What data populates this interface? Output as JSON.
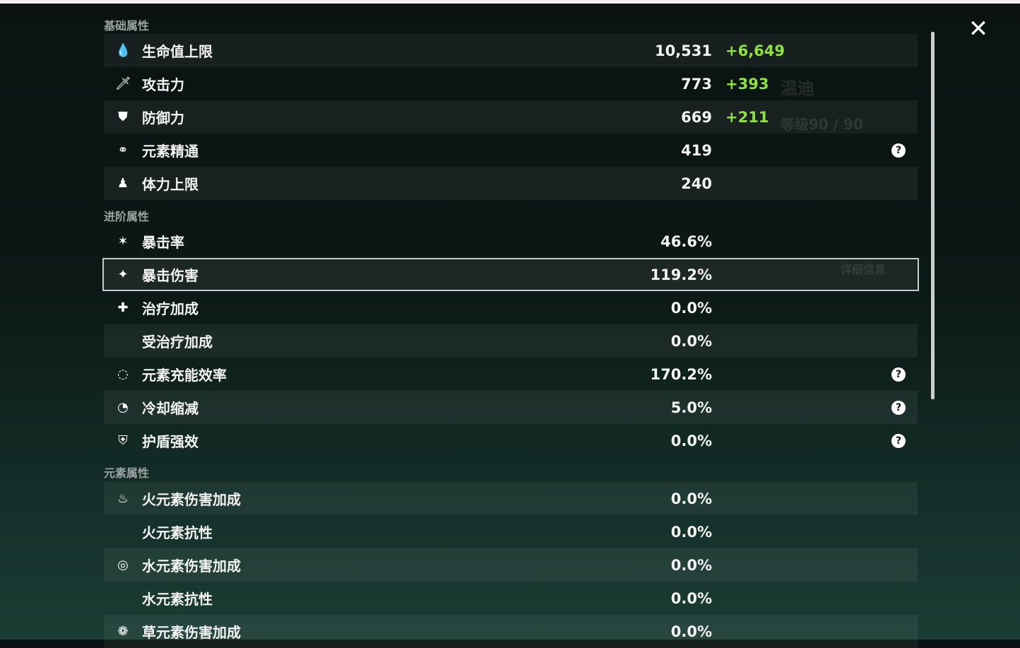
{
  "sections": {
    "basic": "基础属性",
    "advanced": "进阶属性",
    "element": "元素属性"
  },
  "basic": [
    {
      "label": "生命值上限",
      "value": "10,531",
      "bonus": "+6,649",
      "icon": "hp-drop-icon"
    },
    {
      "label": "攻击力",
      "value": "773",
      "bonus": "+393",
      "icon": "sword-icon"
    },
    {
      "label": "防御力",
      "value": "669",
      "bonus": "+211",
      "icon": "shield-icon"
    },
    {
      "label": "元素精通",
      "value": "419",
      "icon": "elemental-mastery-icon",
      "help": true
    },
    {
      "label": "体力上限",
      "value": "240",
      "icon": "stamina-icon"
    }
  ],
  "advanced": [
    {
      "label": "暴击率",
      "value": "46.6%",
      "icon": "crit-rate-icon"
    },
    {
      "label": "暴击伤害",
      "value": "119.2%",
      "icon": "crit-dmg-icon"
    },
    {
      "label": "治疗加成",
      "value": "0.0%",
      "icon": "healing-cross-icon"
    },
    {
      "label": "受治疗加成",
      "value": "0.0%"
    },
    {
      "label": "元素充能效率",
      "value": "170.2%",
      "icon": "energy-recharge-icon",
      "help": true
    },
    {
      "label": "冷却缩减",
      "value": "5.0%",
      "icon": "cooldown-icon",
      "help": true
    },
    {
      "label": "护盾强效",
      "value": "0.0%",
      "icon": "shield-strength-icon",
      "help": true
    }
  ],
  "element": [
    {
      "label": "火元素伤害加成",
      "value": "0.0%",
      "icon": "pyro-icon"
    },
    {
      "label": "火元素抗性",
      "value": "0.0%"
    },
    {
      "label": "水元素伤害加成",
      "value": "0.0%",
      "icon": "hydro-icon"
    },
    {
      "label": "水元素抗性",
      "value": "0.0%"
    },
    {
      "label": "草元素伤害加成",
      "value": "0.0%",
      "icon": "dendro-icon"
    }
  ],
  "help_symbol": "?",
  "close_symbol": "✕",
  "background": {
    "name": "温迪",
    "level": "等级90 / 90",
    "details": "详细信息"
  },
  "colors": {
    "bonus": "#8fe23a",
    "text": "#f3f3f3"
  }
}
